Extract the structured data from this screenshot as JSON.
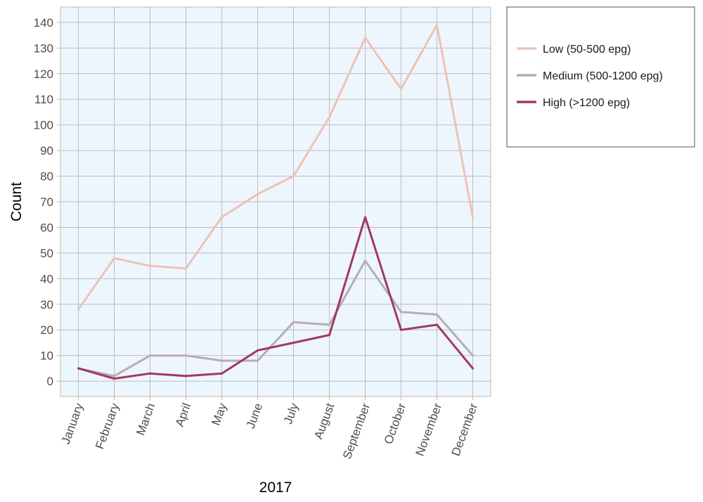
{
  "chart_data": {
    "type": "line",
    "xlabel": "2017",
    "ylabel": "Count",
    "categories": [
      "January",
      "February",
      "March",
      "April",
      "May",
      "June",
      "July",
      "August",
      "September",
      "October",
      "November",
      "December"
    ],
    "ylim": [
      -6,
      146
    ],
    "yticks": [
      0,
      10,
      20,
      30,
      40,
      50,
      60,
      70,
      80,
      90,
      100,
      110,
      120,
      130,
      140
    ],
    "grid": true,
    "legend_position": "right",
    "series": [
      {
        "name": "Low (50-500 epg)",
        "color": "#ecc3b5",
        "values": [
          28,
          48,
          45,
          44,
          64,
          73,
          80,
          103,
          134,
          114,
          139,
          64
        ]
      },
      {
        "name": "Medium (500-1200 epg)",
        "color": "#b7adb4",
        "values": [
          5,
          2,
          10,
          10,
          8,
          8,
          23,
          22,
          47,
          27,
          26,
          10
        ]
      },
      {
        "name": "High (>1200 epg)",
        "color": "#a3385e",
        "values": [
          5,
          1,
          3,
          2,
          3,
          12,
          15,
          18,
          64,
          20,
          22,
          5
        ]
      }
    ]
  }
}
